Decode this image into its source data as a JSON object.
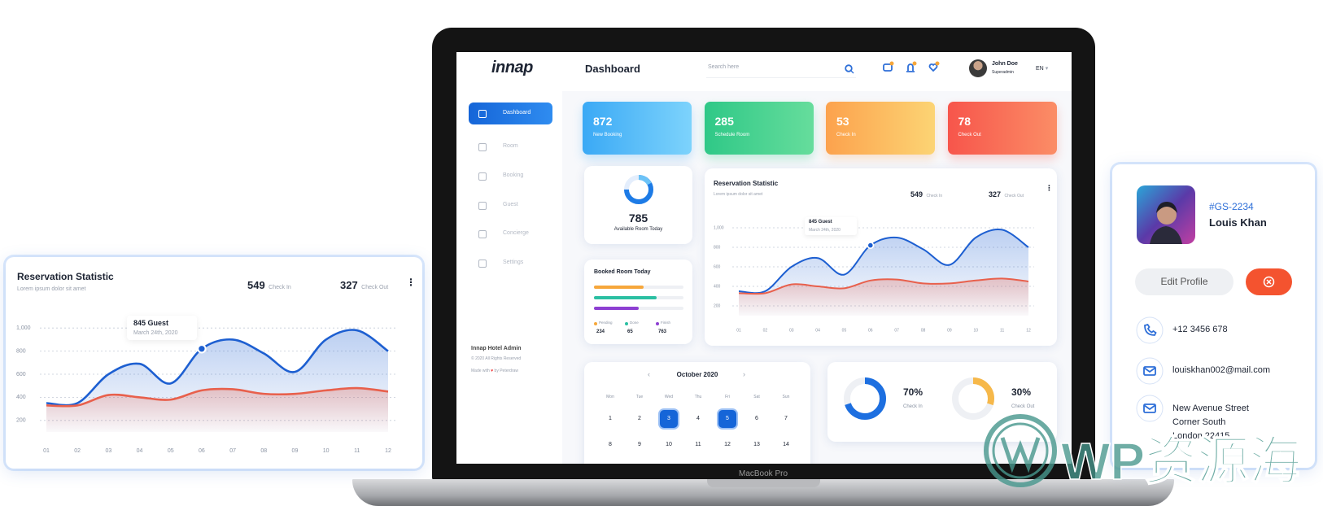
{
  "reservation": {
    "title": "Reservation Statistic",
    "subtitle": "Lorem ipsum dolor sit amet",
    "check_in_value": 549,
    "check_in_label": "Check In",
    "check_out_value": 327,
    "check_out_label": "Check Out",
    "tooltip_value": "845 Guest",
    "tooltip_date": "March 24th, 2020",
    "chart": {
      "type": "line",
      "categories": [
        "01",
        "02",
        "03",
        "04",
        "05",
        "06",
        "07",
        "08",
        "09",
        "10",
        "11",
        "12"
      ],
      "series": [
        {
          "color": "#1d5fd1",
          "values": [
            350,
            350,
            600,
            690,
            520,
            820,
            900,
            780,
            620,
            900,
            980,
            800
          ]
        },
        {
          "color": "#e8604c",
          "values": [
            330,
            330,
            420,
            400,
            380,
            460,
            470,
            430,
            430,
            460,
            480,
            450
          ]
        }
      ],
      "ylim": [
        100,
        1100
      ],
      "yticks": [
        200,
        400,
        600,
        800,
        {
          "value": 1000,
          "label": "1,000"
        }
      ],
      "grid": true
    }
  },
  "dashboard": {
    "logo": "innap",
    "page_title": "Dashboard",
    "search_placeholder": "Search here",
    "user_name": "John Doe",
    "user_role": "Superadmin",
    "language": "EN",
    "nav": [
      "Dashboard",
      "Room",
      "Booking",
      "Guest",
      "Concierge",
      "Settings"
    ],
    "footer_brand": "Innap Hotel Admin",
    "footer_copyright": "© 2020 All Rights Reserved",
    "footer_credit_prefix": "Made with",
    "footer_credit_suffix": "by Peterdraw",
    "stats": [
      {
        "value": 872,
        "label": "New Booking",
        "colors": [
          "#3aa9f5",
          "#7dd3fc"
        ]
      },
      {
        "value": 285,
        "label": "Schedule Room",
        "colors": [
          "#2fc887",
          "#66dd9c"
        ]
      },
      {
        "value": 53,
        "label": "Check In",
        "colors": [
          "#fca24d",
          "#fcd474"
        ]
      },
      {
        "value": 78,
        "label": "Check Out",
        "colors": [
          "#f7554b",
          "#fb8d66"
        ]
      }
    ],
    "available_value": 785,
    "available_label": "Available Room Today",
    "booked_title": "Booked Room Today",
    "booked_legend": [
      {
        "label": "Pending",
        "value": 234,
        "color": "#f6a73b"
      },
      {
        "label": "Done",
        "value": 65,
        "color": "#2bbfa2"
      },
      {
        "label": "Finish",
        "value": 763,
        "color": "#8d3fd2"
      }
    ],
    "calendar": {
      "month": "October 2020",
      "weekdays": [
        "Mon",
        "Tue",
        "Wed",
        "Thu",
        "Fri",
        "Sat",
        "Sun"
      ],
      "days": [
        1,
        2,
        3,
        4,
        5,
        6,
        7,
        8,
        9,
        10,
        11,
        12,
        13,
        14
      ],
      "selected": [
        3,
        5
      ]
    },
    "occupancy": {
      "values": [
        70,
        30
      ],
      "value_labels": [
        "70%",
        "30%"
      ],
      "labels": [
        "Check In",
        "Check Out"
      ],
      "colors": [
        "#1d6fe0",
        "#f6b84a"
      ]
    },
    "device": "MacBook Pro"
  },
  "profile": {
    "id": "#GS-2234",
    "name": "Louis Khan",
    "edit_button": "Edit Profile",
    "phone": "+12 3456 678",
    "email": "louiskhan002@mail.com",
    "address": [
      "New Avenue Street",
      "Corner South",
      "London 22415"
    ]
  },
  "watermark": "WP资源海"
}
